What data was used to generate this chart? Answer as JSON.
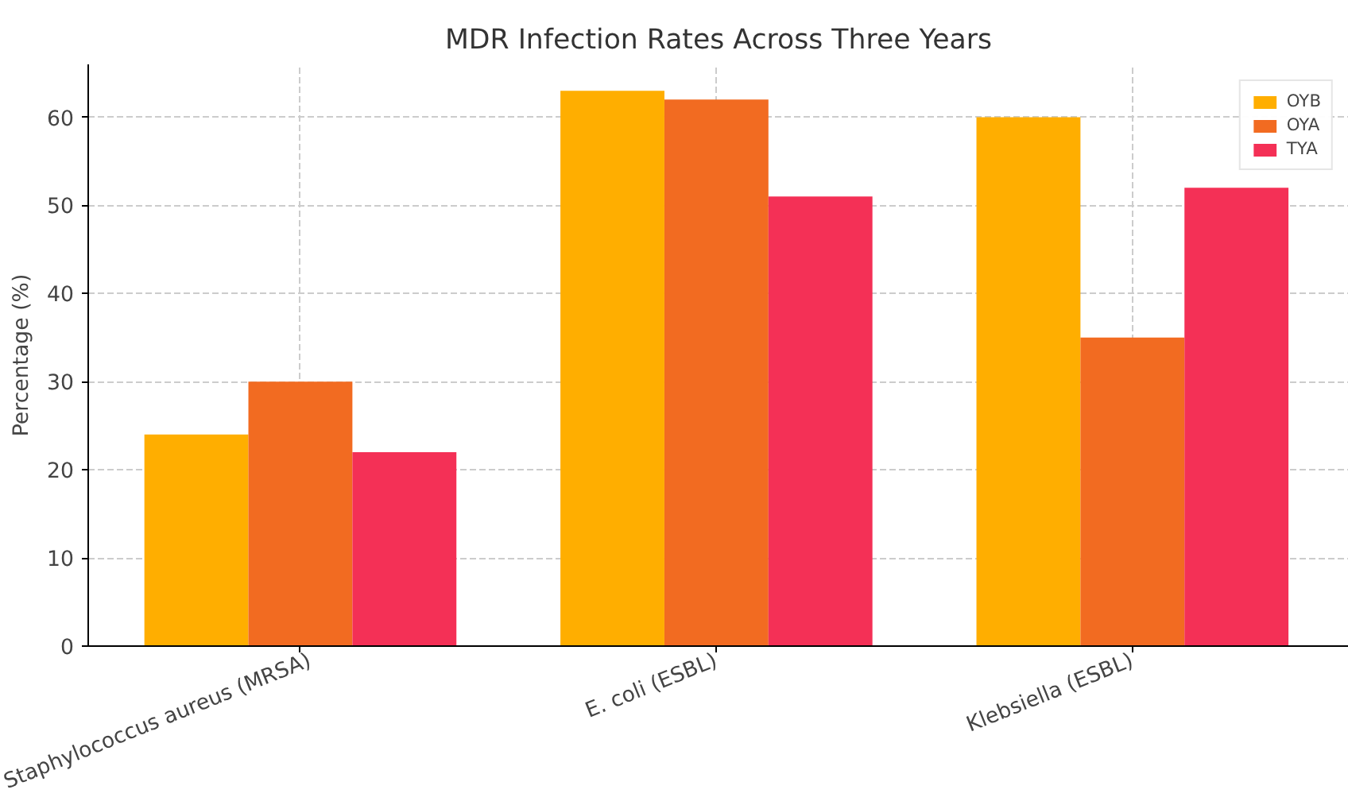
{
  "chart_data": {
    "type": "bar",
    "title": "MDR Infection Rates Across Three Years",
    "ylabel": "Percentage (%)",
    "categories": [
      "Staphylococcus aureus (MRSA)",
      "E. coli (ESBL)",
      "Klebsiella (ESBL)"
    ],
    "series": [
      {
        "name": "OYB",
        "color": "#ffae00",
        "values": [
          24,
          63,
          60
        ]
      },
      {
        "name": "OYA",
        "color": "#f26b21",
        "values": [
          30,
          62,
          35
        ]
      },
      {
        "name": "TYA",
        "color": "#f43056",
        "values": [
          22,
          51,
          52
        ]
      }
    ],
    "ylim": [
      0,
      66
    ],
    "yticks": [
      0,
      10,
      20,
      30,
      40,
      50,
      60
    ],
    "grid": true,
    "legend": "top right"
  }
}
